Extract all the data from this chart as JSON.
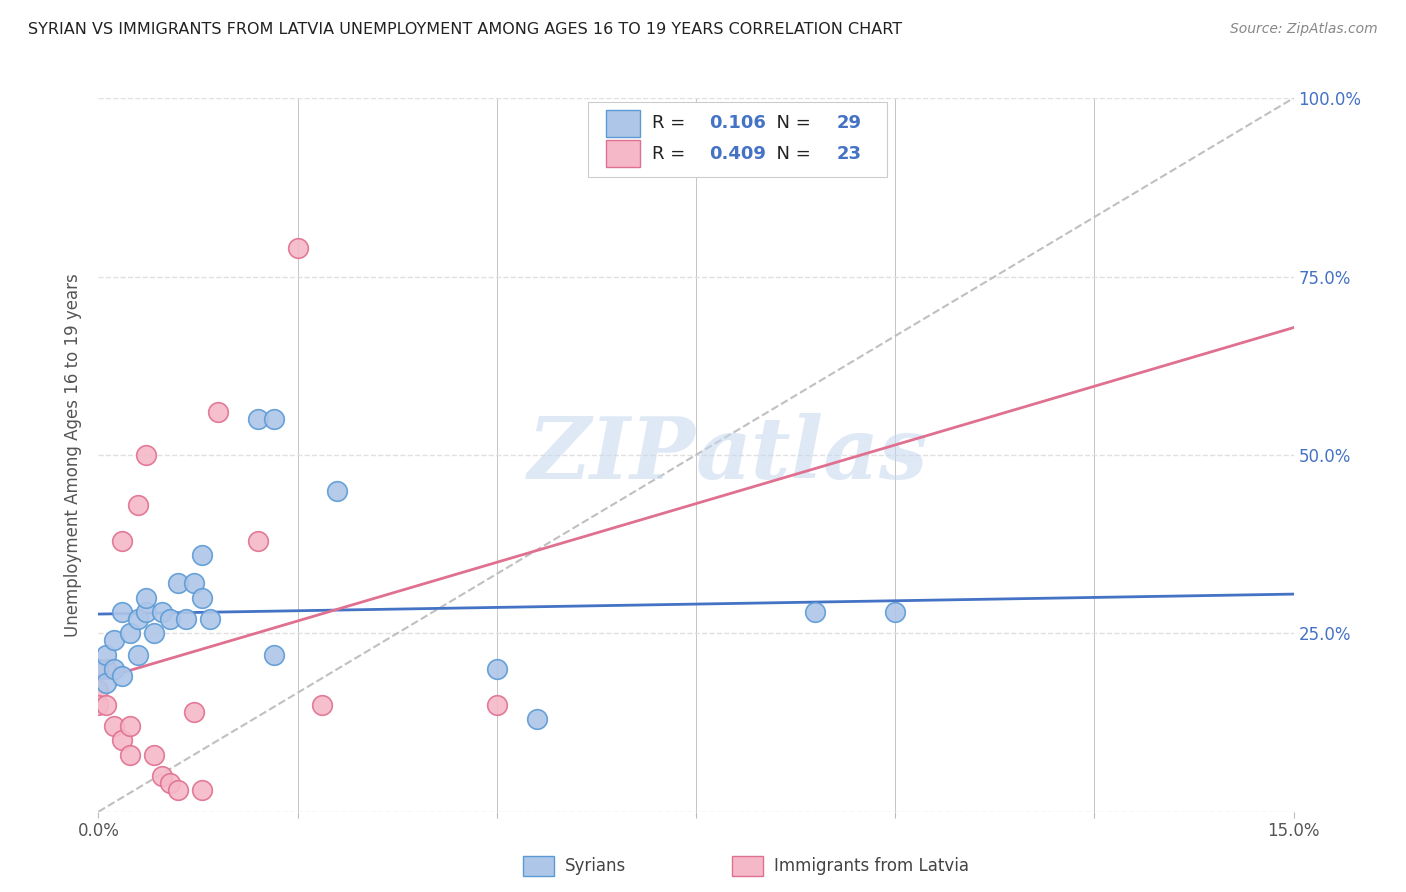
{
  "title": "SYRIAN VS IMMIGRANTS FROM LATVIA UNEMPLOYMENT AMONG AGES 16 TO 19 YEARS CORRELATION CHART",
  "source": "Source: ZipAtlas.com",
  "ylabel": "Unemployment Among Ages 16 to 19 years",
  "xlabel_syrians": "Syrians",
  "xlabel_latvia": "Immigrants from Latvia",
  "xlim": [
    0.0,
    0.15
  ],
  "ylim": [
    0.0,
    1.0
  ],
  "syrians_R": 0.106,
  "syrians_N": 29,
  "latvia_R": 0.409,
  "latvia_N": 23,
  "color_syrians_fill": "#aec6e8",
  "color_syrians_edge": "#5b9bd5",
  "color_latvia_fill": "#f5b8c8",
  "color_latvia_edge": "#e07090",
  "color_syrians_line": "#4472c4",
  "color_latvia_line": "#e07090",
  "color_diagonal": "#c0c0c0",
  "syrians_x": [
    0.0,
    0.001,
    0.001,
    0.002,
    0.002,
    0.003,
    0.003,
    0.004,
    0.005,
    0.005,
    0.006,
    0.006,
    0.007,
    0.008,
    0.009,
    0.01,
    0.011,
    0.012,
    0.013,
    0.013,
    0.014,
    0.02,
    0.022,
    0.022,
    0.03,
    0.05,
    0.055,
    0.09,
    0.1
  ],
  "syrians_y": [
    0.2,
    0.18,
    0.22,
    0.2,
    0.24,
    0.19,
    0.28,
    0.25,
    0.22,
    0.27,
    0.28,
    0.3,
    0.25,
    0.28,
    0.27,
    0.32,
    0.27,
    0.32,
    0.3,
    0.36,
    0.27,
    0.55,
    0.55,
    0.22,
    0.45,
    0.2,
    0.13,
    0.28,
    0.28
  ],
  "latvia_x": [
    0.0,
    0.0,
    0.0,
    0.001,
    0.001,
    0.002,
    0.003,
    0.003,
    0.004,
    0.004,
    0.005,
    0.006,
    0.007,
    0.008,
    0.009,
    0.01,
    0.012,
    0.013,
    0.015,
    0.02,
    0.025,
    0.028,
    0.05
  ],
  "latvia_y": [
    0.2,
    0.17,
    0.15,
    0.2,
    0.15,
    0.12,
    0.38,
    0.1,
    0.12,
    0.08,
    0.43,
    0.5,
    0.08,
    0.05,
    0.04,
    0.03,
    0.14,
    0.03,
    0.56,
    0.38,
    0.79,
    0.15,
    0.15
  ],
  "watermark_zip": "ZIP",
  "watermark_atlas": "atlas",
  "background_color": "#ffffff",
  "grid_color": "#e0e0e0"
}
